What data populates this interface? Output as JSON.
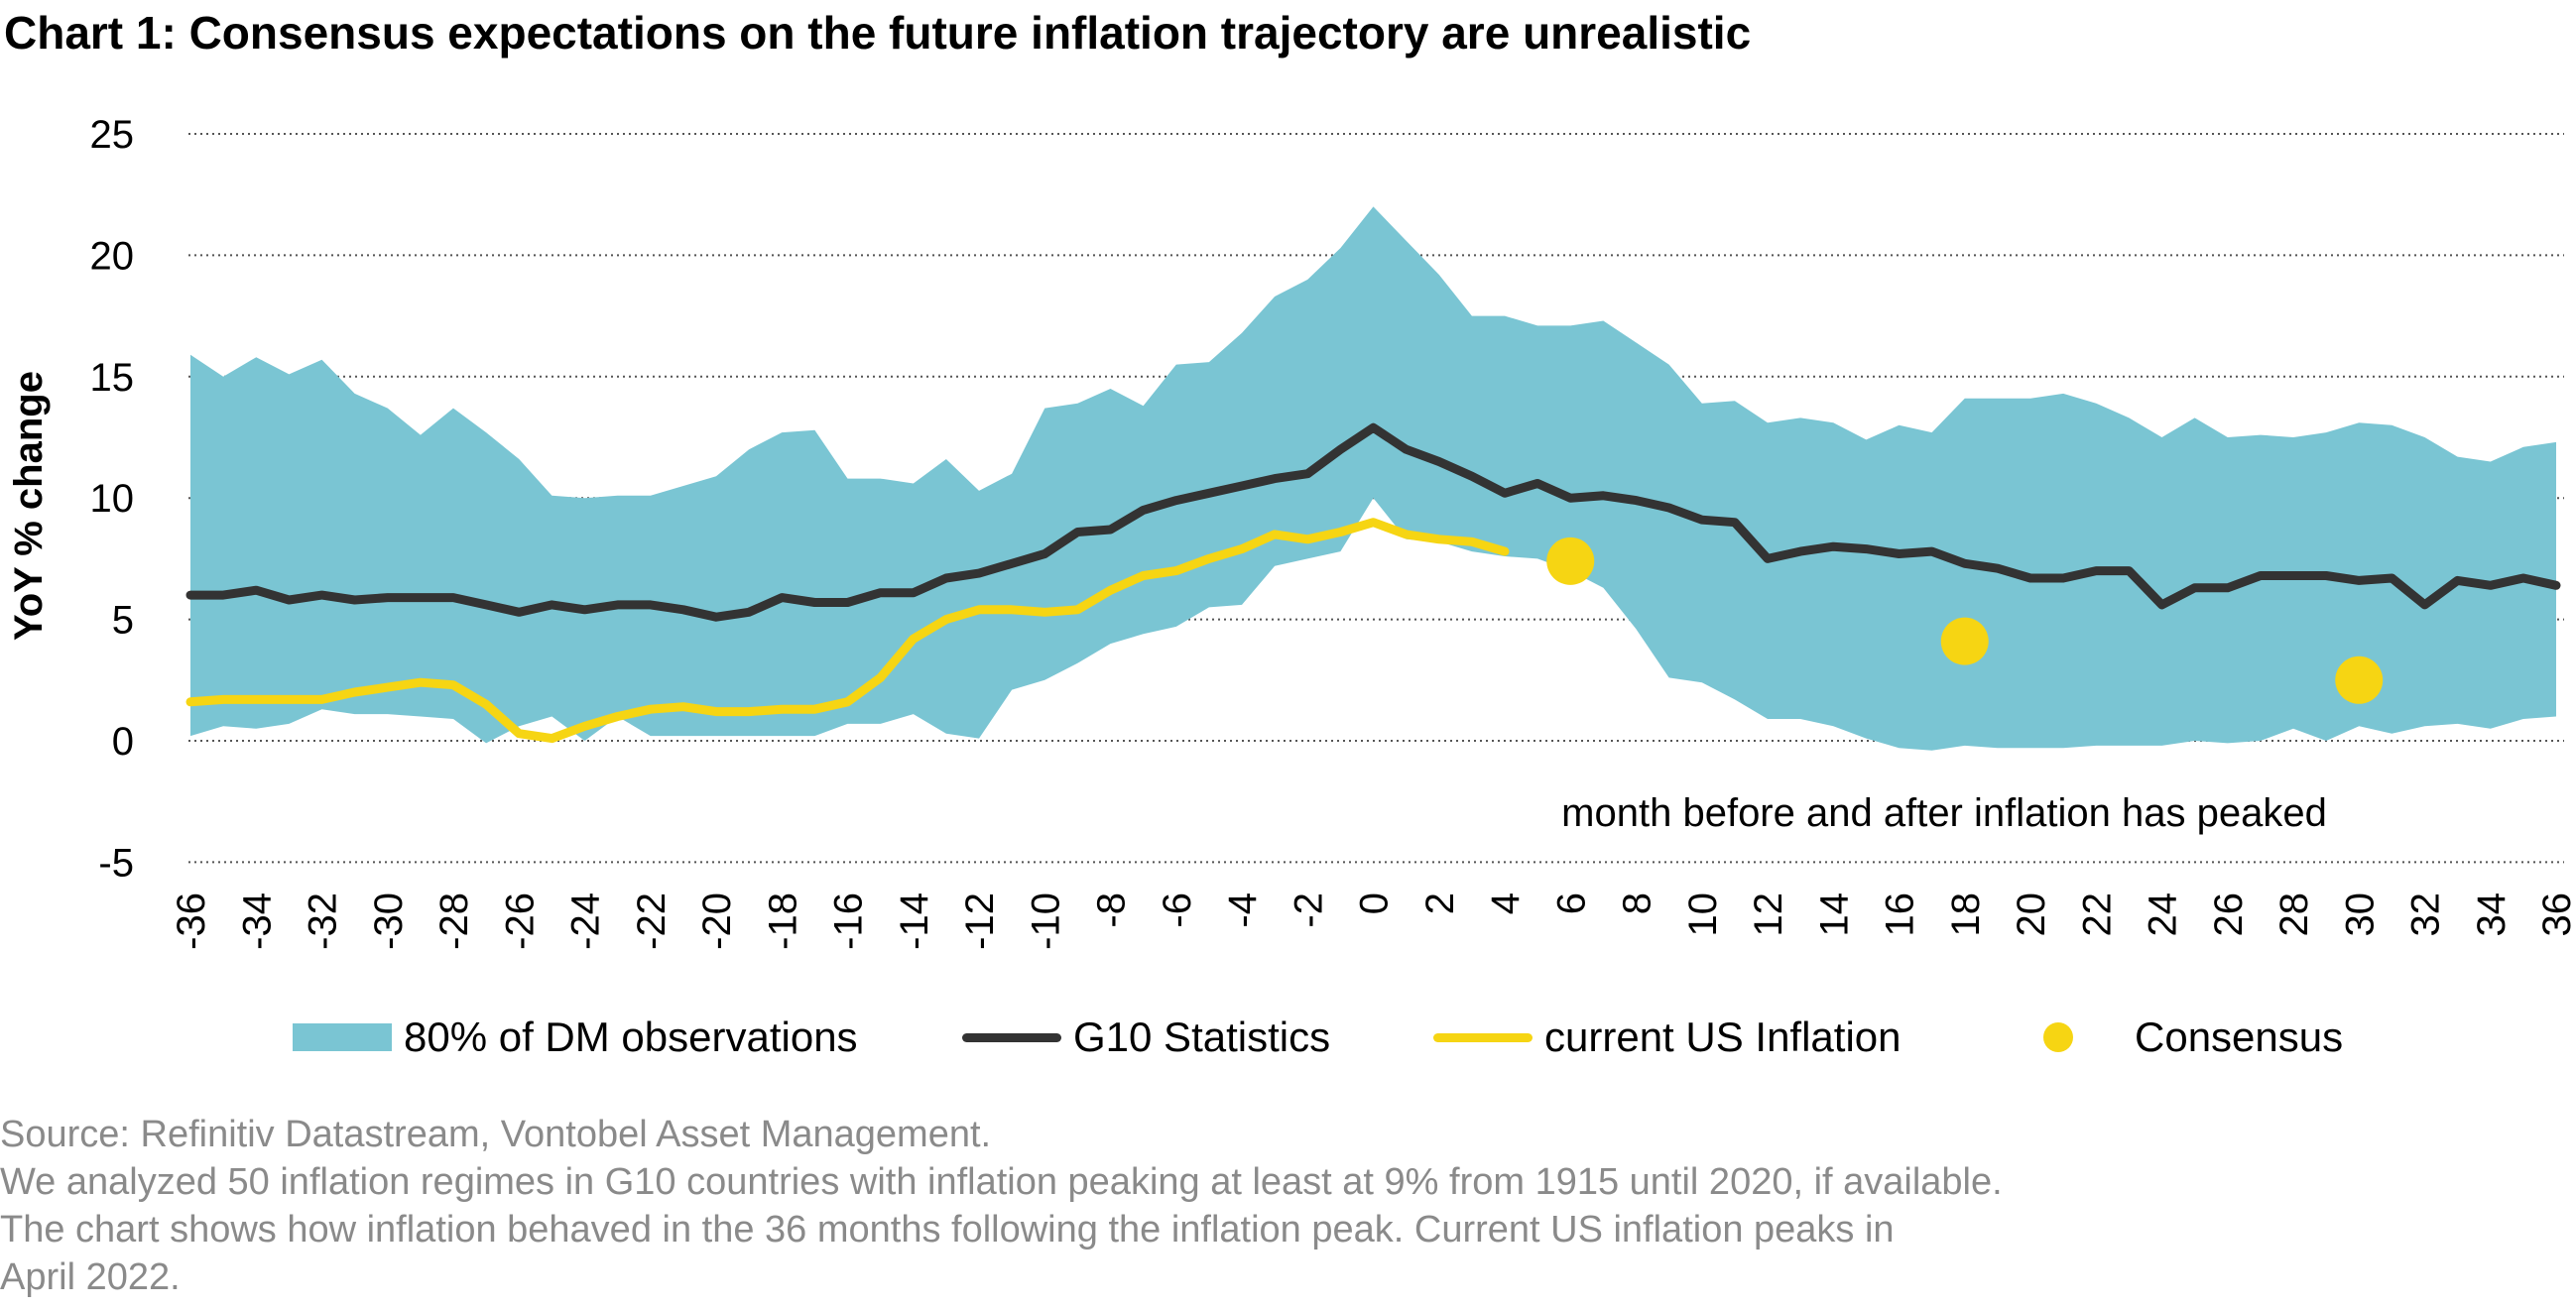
{
  "title": "Chart 1: Consensus expectations on the future inflation trajectory are unrealistic",
  "colors": {
    "band": "#7ac5d3",
    "g10": "#333333",
    "us": "#f6d513",
    "consensus": "#f6d513",
    "grid": "#555555",
    "notes": "#8a8a8a"
  },
  "chart_data": {
    "type": "line",
    "ylabel": "YoY % change",
    "xlabel": "month before and after inflation has peaked",
    "ylim": [
      -5,
      25
    ],
    "yticks": [
      25,
      20,
      15,
      10,
      5,
      0,
      -5
    ],
    "xlim": [
      -36,
      36
    ],
    "xtick_labels": [
      "-36",
      "-34",
      "-32",
      "-30",
      "-28",
      "-26",
      "-24",
      "-22",
      "-20",
      "-18",
      "-16",
      "-14",
      "-12",
      "-10",
      "-8",
      "-6",
      "-4",
      "-2",
      "0",
      "2",
      "4",
      "6",
      "8",
      "10",
      "12",
      "14",
      "16",
      "18",
      "20",
      "22",
      "24",
      "26",
      "28",
      "30",
      "32",
      "34",
      "36"
    ],
    "grid": "horizontal dotted",
    "legend_position": "bottom",
    "legend": [
      "80% of DM observations",
      "G10 Statistics",
      "current US Inflation",
      "Consensus"
    ],
    "band": {
      "name": "80% of DM observations",
      "x": [
        -36,
        -35,
        -34,
        -33,
        -32,
        -31,
        -30,
        -29,
        -28,
        -27,
        -26,
        -25,
        -24,
        -23,
        -22,
        -21,
        -20,
        -19,
        -18,
        -17,
        -16,
        -15,
        -14,
        -13,
        -12,
        -11,
        -10,
        -9,
        -8,
        -7,
        -6,
        -5,
        -4,
        -3,
        -2,
        -1,
        0,
        1,
        2,
        3,
        4,
        5,
        6,
        7,
        8,
        9,
        10,
        11,
        12,
        13,
        14,
        15,
        16,
        17,
        18,
        19,
        20,
        21,
        22,
        23,
        24,
        25,
        26,
        27,
        28,
        29,
        30,
        31,
        32,
        33,
        34,
        35,
        36
      ],
      "upper": [
        15.9,
        15.0,
        15.8,
        15.1,
        15.7,
        14.3,
        13.7,
        12.6,
        13.7,
        12.7,
        11.6,
        10.1,
        10.0,
        10.1,
        10.1,
        10.5,
        10.9,
        12.0,
        12.7,
        12.8,
        10.8,
        10.8,
        10.6,
        11.6,
        10.3,
        11.0,
        13.7,
        13.9,
        14.5,
        13.8,
        15.5,
        15.6,
        16.8,
        18.3,
        19.0,
        20.3,
        22.0,
        20.6,
        19.2,
        17.5,
        17.5,
        17.1,
        17.1,
        17.3,
        16.4,
        15.5,
        13.9,
        14.0,
        13.1,
        13.3,
        13.1,
        12.4,
        13.0,
        12.7,
        14.1,
        14.1,
        14.1,
        14.3,
        13.9,
        13.3,
        12.5,
        13.3,
        12.5,
        12.6,
        12.5,
        12.7,
        13.1,
        13.0,
        12.5,
        11.7,
        11.5,
        12.1,
        12.3
      ],
      "lower": [
        0.2,
        0.6,
        0.5,
        0.7,
        1.3,
        1.1,
        1.1,
        1.0,
        0.9,
        -0.1,
        0.6,
        1.0,
        0.0,
        1.0,
        0.2,
        0.2,
        0.2,
        0.2,
        0.2,
        0.2,
        0.7,
        0.7,
        1.1,
        0.3,
        0.1,
        2.1,
        2.5,
        3.2,
        4.0,
        4.4,
        4.7,
        5.5,
        5.6,
        7.2,
        7.5,
        7.8,
        10.0,
        8.3,
        8.2,
        7.8,
        7.6,
        7.5,
        7.0,
        6.3,
        4.6,
        2.6,
        2.4,
        1.7,
        0.9,
        0.9,
        0.6,
        0.1,
        -0.3,
        -0.4,
        -0.2,
        -0.3,
        -0.3,
        -0.3,
        -0.2,
        -0.2,
        -0.2,
        0.0,
        -0.1,
        0.0,
        0.5,
        0.0,
        0.6,
        0.3,
        0.6,
        0.7,
        0.5,
        0.9,
        1.0
      ]
    },
    "series": [
      {
        "name": "G10 Statistics",
        "x": [
          -36,
          -35,
          -34,
          -33,
          -32,
          -31,
          -30,
          -29,
          -28,
          -27,
          -26,
          -25,
          -24,
          -23,
          -22,
          -21,
          -20,
          -19,
          -18,
          -17,
          -16,
          -15,
          -14,
          -13,
          -12,
          -11,
          -10,
          -9,
          -8,
          -7,
          -6,
          -5,
          -4,
          -3,
          -2,
          -1,
          0,
          1,
          2,
          3,
          4,
          5,
          6,
          7,
          8,
          9,
          10,
          11,
          12,
          13,
          14,
          15,
          16,
          17,
          18,
          19,
          20,
          21,
          22,
          23,
          24,
          25,
          26,
          27,
          28,
          29,
          30,
          31,
          32,
          33,
          34,
          35,
          36
        ],
        "values": [
          6.0,
          6.0,
          6.2,
          5.8,
          6.0,
          5.8,
          5.9,
          5.9,
          5.9,
          5.6,
          5.3,
          5.6,
          5.4,
          5.6,
          5.6,
          5.4,
          5.1,
          5.3,
          5.9,
          5.7,
          5.7,
          6.1,
          6.1,
          6.7,
          6.9,
          7.3,
          7.7,
          8.6,
          8.7,
          9.5,
          9.9,
          10.2,
          10.5,
          10.8,
          11.0,
          12.0,
          12.9,
          12.0,
          11.5,
          10.9,
          10.2,
          10.6,
          10.0,
          10.1,
          9.9,
          9.6,
          9.1,
          9.0,
          7.5,
          7.8,
          8.0,
          7.9,
          7.7,
          7.8,
          7.3,
          7.1,
          6.7,
          6.7,
          7.0,
          7.0,
          5.6,
          6.3,
          6.3,
          6.8,
          6.8,
          6.8,
          6.6,
          6.7,
          5.6,
          6.6,
          6.4,
          6.7,
          6.4
        ]
      },
      {
        "name": "current US Inflation",
        "x": [
          -36,
          -35,
          -34,
          -33,
          -32,
          -31,
          -30,
          -29,
          -28,
          -27,
          -26,
          -25,
          -24,
          -23,
          -22,
          -21,
          -20,
          -19,
          -18,
          -17,
          -16,
          -15,
          -14,
          -13,
          -12,
          -11,
          -10,
          -9,
          -8,
          -7,
          -6,
          -5,
          -4,
          -3,
          -2,
          -1,
          0,
          1,
          2,
          3,
          4
        ],
        "values": [
          1.6,
          1.7,
          1.7,
          1.7,
          1.7,
          2.0,
          2.2,
          2.4,
          2.3,
          1.5,
          0.3,
          0.1,
          0.6,
          1.0,
          1.3,
          1.4,
          1.2,
          1.2,
          1.3,
          1.3,
          1.6,
          2.6,
          4.2,
          5.0,
          5.4,
          5.4,
          5.3,
          5.4,
          6.2,
          6.8,
          7.0,
          7.5,
          7.9,
          8.5,
          8.3,
          8.6,
          9.0,
          8.5,
          8.3,
          8.2,
          7.8
        ]
      }
    ],
    "consensus": {
      "name": "Consensus",
      "x": [
        6,
        18,
        30
      ],
      "values": [
        7.4,
        4.1,
        2.5
      ]
    }
  },
  "notes": [
    "Source: Refinitiv Datastream, Vontobel Asset Management.",
    "We analyzed 50 inflation regimes in G10 countries with inflation peaking at least at 9% from 1915 until 2020, if available.",
    "The chart shows how inflation behaved in the 36 months following the inflation peak. Current US inflation peaks in",
    "April 2022."
  ]
}
